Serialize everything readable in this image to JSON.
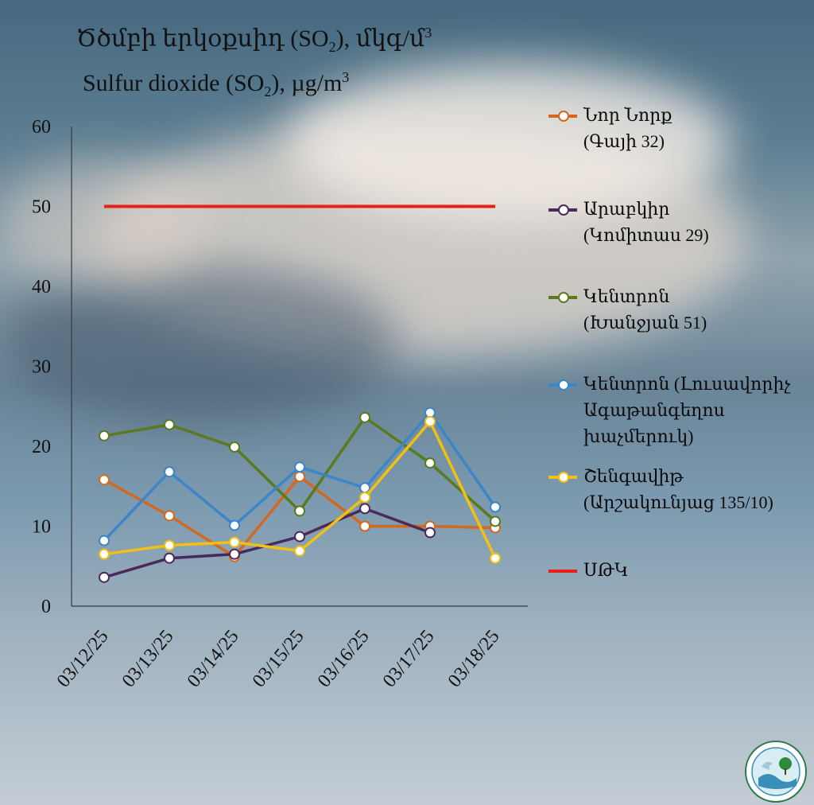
{
  "chart_data": {
    "type": "line",
    "title_am_main": "Ծծմբի երկօքսիդ (SO",
    "title_am_sub": "2",
    "title_am_tail": "), մկգ/մ",
    "title_am_sup": "3",
    "title_en_main": "Sulfur dioxide (SO",
    "title_en_sub": "2",
    "title_en_tail": "), µg/m",
    "title_en_sup": "3",
    "categories": [
      "03/12/25",
      "03/13/25",
      "03/14/25",
      "03/15/25",
      "03/16/25",
      "03/17/25",
      "03/18/25"
    ],
    "ylim": [
      0,
      60
    ],
    "yticks": [
      "0",
      "10",
      "20",
      "30",
      "40",
      "50",
      "60"
    ],
    "grid": false,
    "legend_position": "right",
    "series": [
      {
        "name_line1": "Նոր Նորք",
        "name_line2": "(Գայի 32)",
        "color": "#d2691e",
        "values": [
          15.8,
          11.3,
          6.2,
          16.2,
          10.0,
          10.0,
          9.8
        ]
      },
      {
        "name_line1": "Արաբկիր",
        "name_line2": "(Կոմիտաս 29)",
        "color": "#4a2a5c",
        "values": [
          3.6,
          6.0,
          6.5,
          8.7,
          12.2,
          9.2,
          null
        ]
      },
      {
        "name_line1": "Կենտրոն",
        "name_line2": "(Խանջյան 51)",
        "color": "#5b7a1e",
        "values": [
          21.3,
          22.7,
          19.9,
          11.9,
          23.6,
          17.9,
          10.6
        ]
      },
      {
        "name_line1": "Կենտրոն (Լուսավորիչ",
        "name_line2": "Ագաթանգեղոս",
        "name_line3": "խաչմերուկ)",
        "color": "#3a86c8",
        "values": [
          8.2,
          16.8,
          10.1,
          17.4,
          14.8,
          24.2,
          12.4
        ]
      },
      {
        "name_line1": "Շենգավիթ",
        "name_line2": "(Արշակունյաց 135/10)",
        "color": "#f2c014",
        "values": [
          6.5,
          7.6,
          8.0,
          6.9,
          13.6,
          23.1,
          6.0
        ]
      }
    ],
    "threshold": {
      "name": "ՍԹԿ",
      "value": 50,
      "color": "#e8201a"
    }
  }
}
